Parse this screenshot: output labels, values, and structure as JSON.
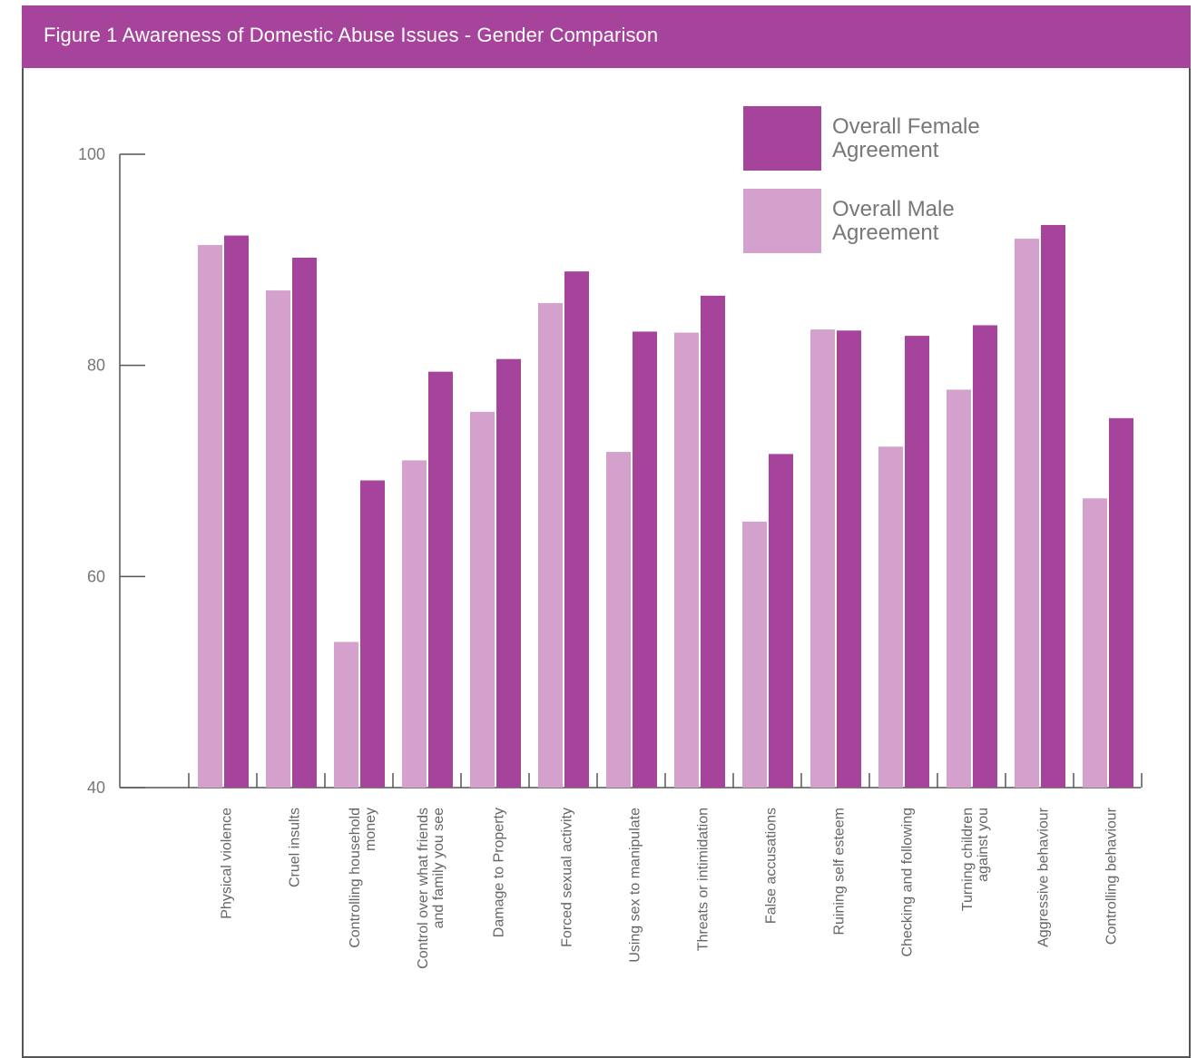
{
  "header": {
    "title": "Figure 1 Awareness of Domestic Abuse Issues - Gender Comparison"
  },
  "colors": {
    "female": "#a6439a",
    "male": "#d4a1cd",
    "axis": "#555555",
    "header_bg": "#a6439a"
  },
  "chart_data": {
    "type": "bar",
    "title": "Figure 1 Awareness of Domestic Abuse Issues - Gender Comparison",
    "xlabel": "",
    "ylabel": "",
    "ylim": [
      40,
      100
    ],
    "yticks": [
      40,
      60,
      80,
      100
    ],
    "grid": false,
    "legend_position": "top-right",
    "categories": [
      [
        "Physical violence"
      ],
      [
        "Cruel insults"
      ],
      [
        "Controlling household",
        "money"
      ],
      [
        "Control over  what friends",
        "and family you see"
      ],
      [
        "Damage to Property"
      ],
      [
        "Forced sexual activity"
      ],
      [
        "Using sex to manipulate"
      ],
      [
        "Threats or intimidation"
      ],
      [
        "False accusations"
      ],
      [
        "Ruining self esteem"
      ],
      [
        "Checking and following"
      ],
      [
        "Turning children",
        "against you"
      ],
      [
        "Aggressive behaviour"
      ],
      [
        "Controlling behaviour"
      ]
    ],
    "series": [
      {
        "name": [
          "Overall Male",
          "Agreement"
        ],
        "color": "#d4a1cd",
        "values": [
          91.4,
          87.1,
          53.8,
          71.0,
          75.6,
          85.9,
          71.8,
          83.1,
          65.2,
          83.4,
          72.3,
          77.7,
          92.0,
          67.4
        ]
      },
      {
        "name": [
          "Overall Female",
          "Agreement"
        ],
        "color": "#a6439a",
        "values": [
          92.3,
          90.2,
          69.1,
          79.4,
          80.6,
          88.9,
          83.2,
          86.6,
          71.6,
          83.3,
          82.8,
          83.8,
          93.3,
          75.0
        ]
      }
    ]
  }
}
